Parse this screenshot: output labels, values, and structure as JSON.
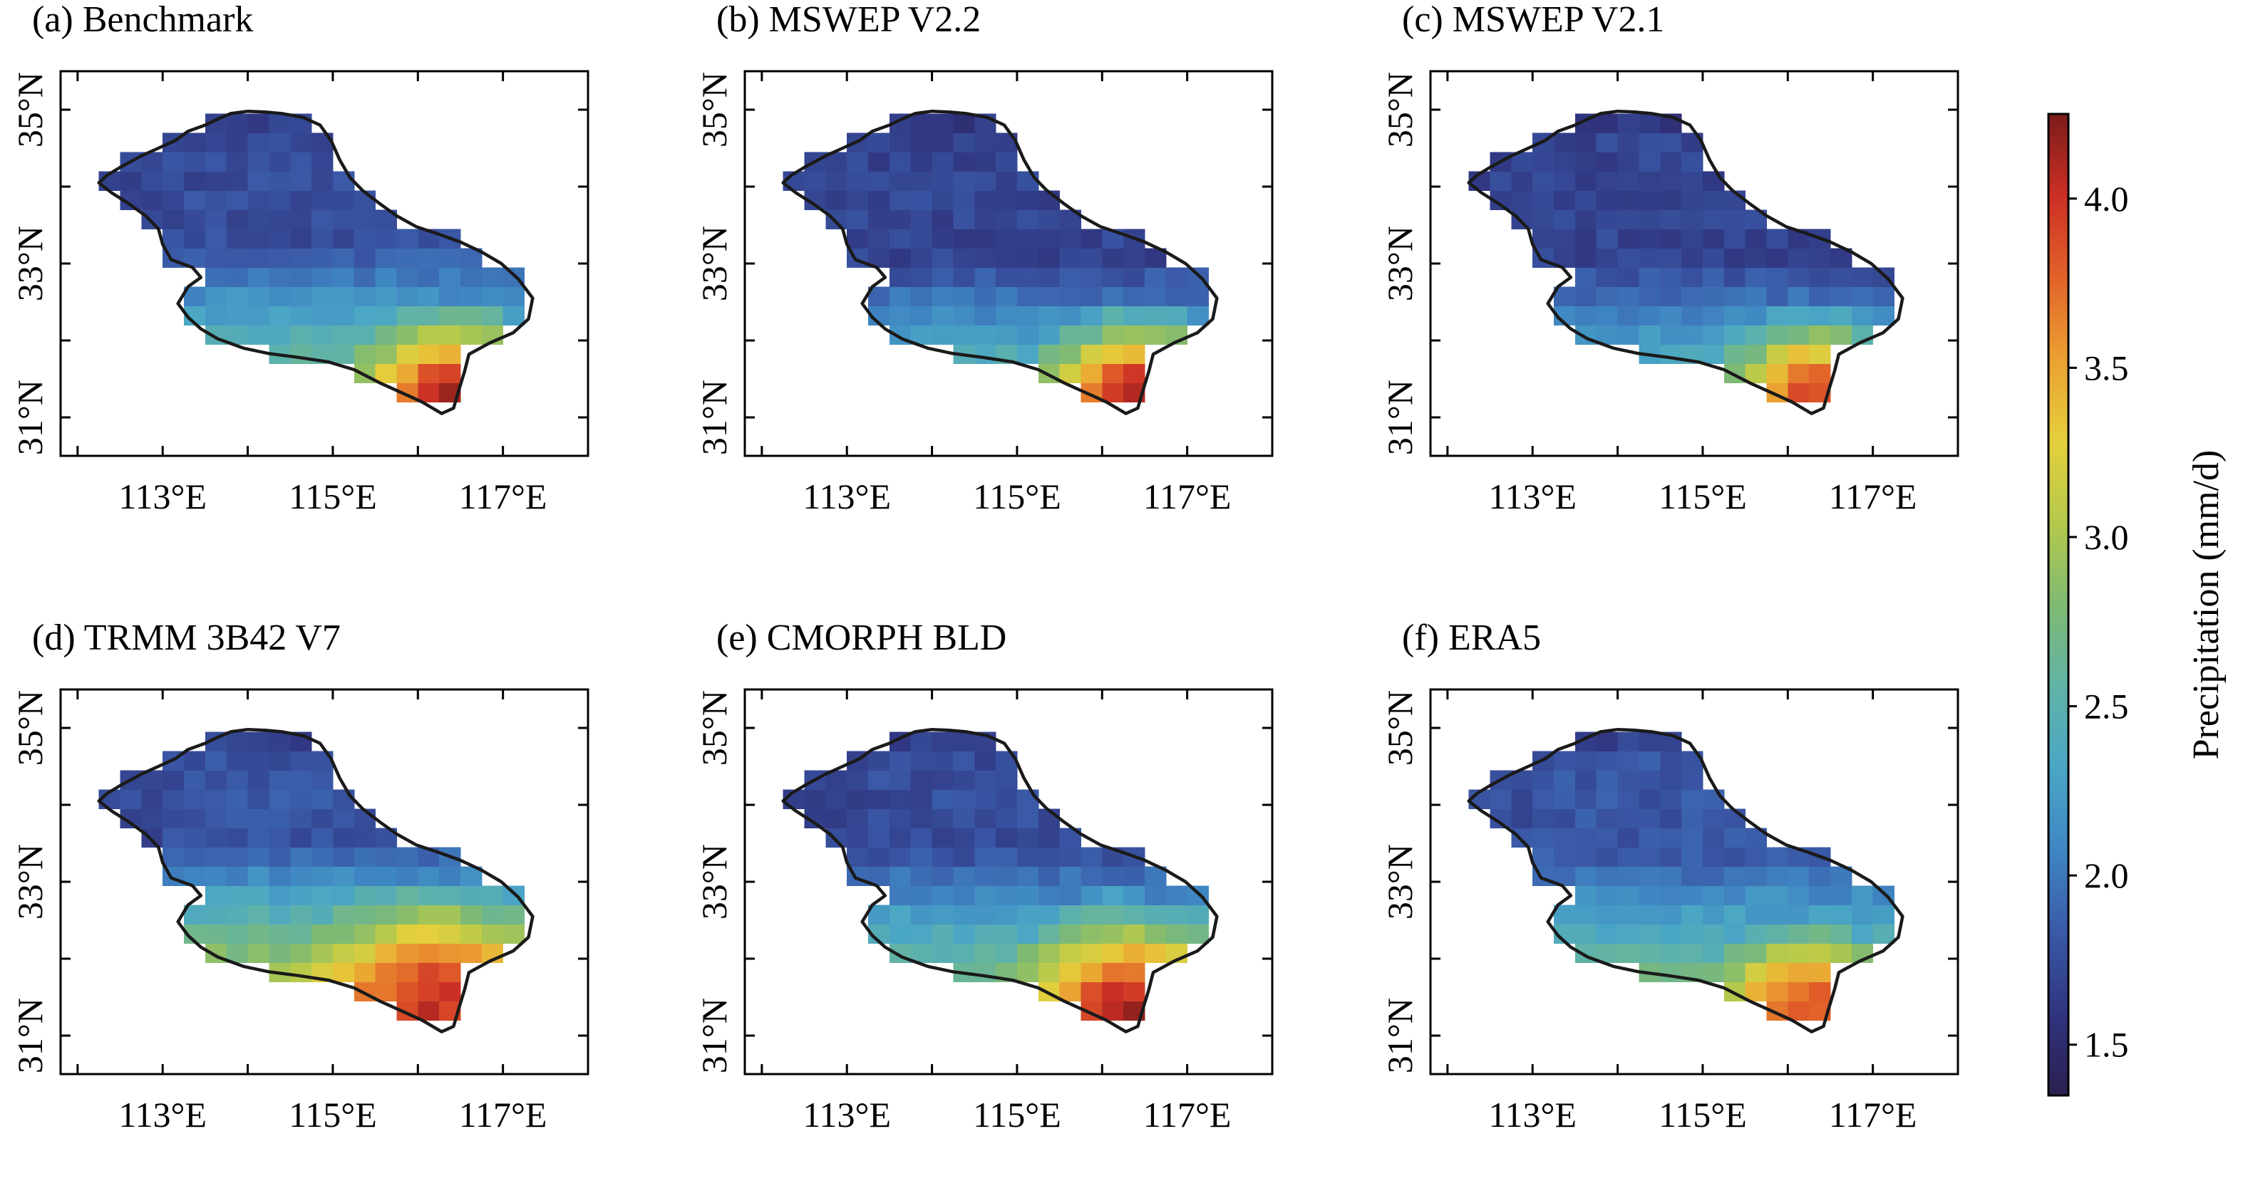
{
  "figure": {
    "colorbar": {
      "label": "Precipitation (mm/d)",
      "range": [
        1.35,
        4.25
      ],
      "ticks": [
        "1.5",
        "2.0",
        "2.5",
        "3.0",
        "3.5",
        "4.0"
      ],
      "tick_values": [
        1.5,
        2.0,
        2.5,
        3.0,
        3.5,
        4.0
      ],
      "colormap": [
        "#2b1f4f",
        "#30347f",
        "#3a5aa8",
        "#3f86c3",
        "#4aa6c5",
        "#61b3a6",
        "#7fba73",
        "#b4c94c",
        "#e5cf3c",
        "#eba132",
        "#e2622a",
        "#cc2f25",
        "#7a1c1a"
      ]
    }
  },
  "chart_data": [
    {
      "type": "heatmap",
      "title": "(a) Benchmark",
      "xticks": [
        "113°E",
        "115°E",
        "117°E"
      ],
      "xtick_values": [
        113,
        115,
        117
      ],
      "yticks": [
        "31°N",
        "33°N",
        "35°N"
      ],
      "ytick_values": [
        31,
        33,
        35
      ],
      "xlim": [
        111.8,
        118.0
      ],
      "ylim": [
        30.5,
        35.5
      ],
      "field": {
        "north_value": 1.75,
        "lat_pivot": 33.3,
        "south_gradient": 0.55,
        "west_bias": 0.05,
        "hot_spot": {
          "lon": 116.4,
          "lat": 31.2,
          "value": 4.2,
          "radius": 0.6
        }
      }
    },
    {
      "type": "heatmap",
      "title": "(b) MSWEP V2.2",
      "xticks": [
        "113°E",
        "115°E",
        "117°E"
      ],
      "xtick_values": [
        113,
        115,
        117
      ],
      "yticks": [
        "31°N",
        "33°N",
        "35°N"
      ],
      "ytick_values": [
        31,
        33,
        35
      ],
      "xlim": [
        111.8,
        118.0
      ],
      "ylim": [
        30.5,
        35.5
      ],
      "field": {
        "north_value": 1.7,
        "lat_pivot": 33.0,
        "south_gradient": 0.6,
        "west_bias": 0.0,
        "hot_spot": {
          "lon": 116.4,
          "lat": 31.2,
          "value": 4.2,
          "radius": 0.6
        }
      }
    },
    {
      "type": "heatmap",
      "title": "(c) MSWEP V2.1",
      "xticks": [
        "113°E",
        "115°E",
        "117°E"
      ],
      "xtick_values": [
        113,
        115,
        117
      ],
      "yticks": [
        "31°N",
        "33°N",
        "35°N"
      ],
      "ytick_values": [
        31,
        33,
        35
      ],
      "xlim": [
        111.8,
        118.0
      ],
      "ylim": [
        30.5,
        35.5
      ],
      "field": {
        "north_value": 1.7,
        "lat_pivot": 33.0,
        "south_gradient": 0.55,
        "west_bias": 0.0,
        "hot_spot": {
          "lon": 116.3,
          "lat": 31.3,
          "value": 3.9,
          "radius": 0.55
        }
      }
    },
    {
      "type": "heatmap",
      "title": "(d) TRMM 3B42 V7",
      "xticks": [
        "113°E",
        "115°E",
        "117°E"
      ],
      "xtick_values": [
        113,
        115,
        117
      ],
      "yticks": [
        "31°N",
        "33°N",
        "35°N"
      ],
      "ytick_values": [
        31,
        33,
        35
      ],
      "xlim": [
        111.8,
        118.0
      ],
      "ylim": [
        30.5,
        35.5
      ],
      "field": {
        "north_value": 1.8,
        "lat_pivot": 33.5,
        "south_gradient": 0.7,
        "west_bias": 0.1,
        "hot_spot": {
          "lon": 116.2,
          "lat": 31.4,
          "value": 4.0,
          "radius": 0.75
        }
      }
    },
    {
      "type": "heatmap",
      "title": "(e) CMORPH BLD",
      "xticks": [
        "113°E",
        "115°E",
        "117°E"
      ],
      "xtick_values": [
        113,
        115,
        117
      ],
      "yticks": [
        "31°N",
        "33°N",
        "35°N"
      ],
      "ytick_values": [
        31,
        33,
        35
      ],
      "xlim": [
        111.8,
        118.0
      ],
      "ylim": [
        30.5,
        35.5
      ],
      "field": {
        "north_value": 1.75,
        "lat_pivot": 33.4,
        "south_gradient": 0.6,
        "west_bias": 0.05,
        "hot_spot": {
          "lon": 116.3,
          "lat": 31.3,
          "value": 4.1,
          "radius": 0.7
        }
      }
    },
    {
      "type": "heatmap",
      "title": "(f) ERA5",
      "xticks": [
        "113°E",
        "115°E",
        "117°E"
      ],
      "xtick_values": [
        113,
        115,
        117
      ],
      "yticks": [
        "31°N",
        "33°N",
        "35°N"
      ],
      "ytick_values": [
        31,
        33,
        35
      ],
      "xlim": [
        111.8,
        118.0
      ],
      "ylim": [
        30.5,
        35.5
      ],
      "field": {
        "north_value": 1.8,
        "lat_pivot": 33.4,
        "south_gradient": 0.55,
        "west_bias": 0.05,
        "hot_spot": {
          "lon": 116.2,
          "lat": 31.3,
          "value": 3.9,
          "radius": 0.55
        }
      }
    }
  ]
}
